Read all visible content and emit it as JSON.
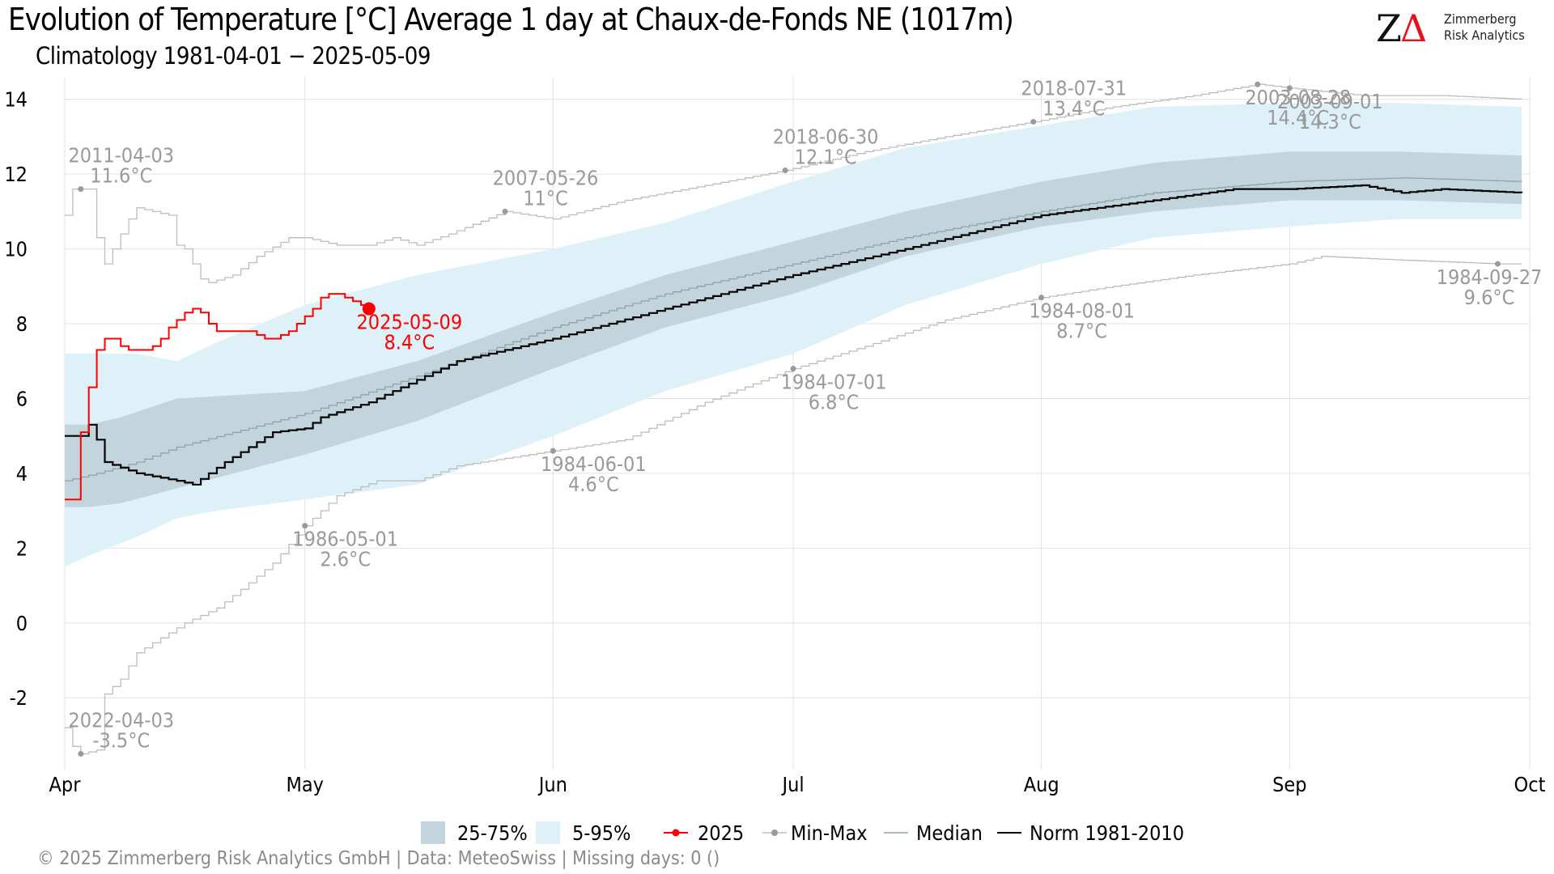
{
  "title": "Evolution of Temperature [°C] Average 1 day at Chaux-de-Fonds  NE (1017m)",
  "subtitle": "Climatology 1981-04-01 − 2025-05-09",
  "logo": {
    "mark_z": "Z",
    "mark_delta": "Δ",
    "line1": "Zimmerberg",
    "line2": "Risk Analytics"
  },
  "caption": "©  2025 Zimmerberg Risk Analytics GmbH | Data: MeteoSwiss | Missing days: 0 ()",
  "colors": {
    "band_25_75": "#c3d5dc",
    "band_5_95": "#dff1f8",
    "year_2025": "#ff0000",
    "min_max": "#bdbdbd",
    "min_max_point": "#9a9a9a",
    "median": "#8fa3ad",
    "norm": "#000000",
    "annotation": "#9a9a9a"
  },
  "legend": [
    {
      "label": "25-75%",
      "kind": "band_25_75"
    },
    {
      "label": "5-95%",
      "kind": "band_5_95"
    },
    {
      "label": "2025",
      "kind": "year_2025"
    },
    {
      "label": "Min-Max",
      "kind": "min_max"
    },
    {
      "label": "Median",
      "kind": "median"
    },
    {
      "label": "Norm 1981-2010",
      "kind": "norm"
    }
  ],
  "chart_data": {
    "type": "line",
    "title": "Evolution of Temperature [°C] Average 1 day at Chaux-de-Fonds  NE (1017m)",
    "subtitle": "Climatology 1981-04-01 − 2025-05-09",
    "xlabel": "",
    "ylabel": "",
    "xlim": [
      "2025-04-01",
      "2025-10-01"
    ],
    "ylim": [
      -3.9,
      14.6
    ],
    "x_ticks": [
      {
        "date": "2025-04-01",
        "label": "Apr"
      },
      {
        "date": "2025-05-01",
        "label": "May"
      },
      {
        "date": "2025-06-01",
        "label": "Jun"
      },
      {
        "date": "2025-07-01",
        "label": "Jul"
      },
      {
        "date": "2025-08-01",
        "label": "Aug"
      },
      {
        "date": "2025-09-01",
        "label": "Sep"
      },
      {
        "date": "2025-10-01",
        "label": "Oct"
      }
    ],
    "y_ticks": [
      -2,
      0,
      2,
      4,
      6,
      8,
      10,
      12,
      14
    ],
    "grid": true,
    "legend_position": "bottom",
    "bands": [
      {
        "name": "5-95%",
        "points": [
          [
            "2025-04-01",
            1.5,
            7.2
          ],
          [
            "2025-04-04",
            1.8,
            7.2
          ],
          [
            "2025-04-10",
            2.3,
            7.2
          ],
          [
            "2025-04-15",
            2.8,
            7.0
          ],
          [
            "2025-04-20",
            3.0,
            7.5
          ],
          [
            "2025-05-01",
            3.3,
            8.5
          ],
          [
            "2025-05-15",
            3.7,
            9.3
          ],
          [
            "2025-06-01",
            5.0,
            10.0
          ],
          [
            "2025-06-15",
            6.2,
            10.7
          ],
          [
            "2025-07-01",
            7.2,
            11.8
          ],
          [
            "2025-07-15",
            8.5,
            12.7
          ],
          [
            "2025-08-01",
            9.6,
            13.3
          ],
          [
            "2025-08-15",
            10.3,
            13.8
          ],
          [
            "2025-09-01",
            10.6,
            13.9
          ],
          [
            "2025-09-15",
            10.8,
            13.9
          ],
          [
            "2025-09-30",
            10.8,
            13.8
          ]
        ]
      },
      {
        "name": "25-75%",
        "points": [
          [
            "2025-04-01",
            3.1,
            5.3
          ],
          [
            "2025-04-04",
            3.1,
            5.3
          ],
          [
            "2025-04-08",
            3.2,
            5.5
          ],
          [
            "2025-04-15",
            3.6,
            6.0
          ],
          [
            "2025-05-01",
            4.5,
            6.2
          ],
          [
            "2025-05-15",
            5.4,
            7.0
          ],
          [
            "2025-06-01",
            6.8,
            8.3
          ],
          [
            "2025-06-15",
            7.9,
            9.3
          ],
          [
            "2025-07-01",
            8.8,
            10.2
          ],
          [
            "2025-07-15",
            9.8,
            11.0
          ],
          [
            "2025-08-01",
            10.6,
            11.8
          ],
          [
            "2025-08-15",
            11.0,
            12.3
          ],
          [
            "2025-09-01",
            11.3,
            12.6
          ],
          [
            "2025-09-15",
            11.3,
            12.6
          ],
          [
            "2025-09-30",
            11.2,
            12.5
          ]
        ]
      }
    ],
    "series": [
      {
        "name": "2025",
        "kind": "year_2025",
        "points": [
          [
            "2025-04-01",
            3.3
          ],
          [
            "2025-04-02",
            3.3
          ],
          [
            "2025-04-03",
            5.1
          ],
          [
            "2025-04-04",
            6.3
          ],
          [
            "2025-04-05",
            7.3
          ],
          [
            "2025-04-06",
            7.6
          ],
          [
            "2025-04-07",
            7.6
          ],
          [
            "2025-04-08",
            7.4
          ],
          [
            "2025-04-09",
            7.3
          ],
          [
            "2025-04-10",
            7.3
          ],
          [
            "2025-04-11",
            7.3
          ],
          [
            "2025-04-12",
            7.4
          ],
          [
            "2025-04-13",
            7.6
          ],
          [
            "2025-04-14",
            7.9
          ],
          [
            "2025-04-15",
            8.1
          ],
          [
            "2025-04-16",
            8.3
          ],
          [
            "2025-04-17",
            8.4
          ],
          [
            "2025-04-18",
            8.3
          ],
          [
            "2025-04-19",
            8.0
          ],
          [
            "2025-04-20",
            7.8
          ],
          [
            "2025-04-21",
            7.8
          ],
          [
            "2025-04-22",
            7.8
          ],
          [
            "2025-04-23",
            7.8
          ],
          [
            "2025-04-24",
            7.8
          ],
          [
            "2025-04-25",
            7.7
          ],
          [
            "2025-04-26",
            7.6
          ],
          [
            "2025-04-27",
            7.6
          ],
          [
            "2025-04-28",
            7.7
          ],
          [
            "2025-04-29",
            7.8
          ],
          [
            "2025-04-30",
            8.0
          ],
          [
            "2025-05-01",
            8.2
          ],
          [
            "2025-05-02",
            8.4
          ],
          [
            "2025-05-03",
            8.7
          ],
          [
            "2025-05-04",
            8.8
          ],
          [
            "2025-05-05",
            8.8
          ],
          [
            "2025-05-06",
            8.7
          ],
          [
            "2025-05-07",
            8.6
          ],
          [
            "2025-05-08",
            8.5
          ],
          [
            "2025-05-09",
            8.4
          ]
        ]
      },
      {
        "name": "Norm 1981-2010",
        "kind": "norm",
        "points": [
          [
            "2025-04-01",
            5.0
          ],
          [
            "2025-04-03",
            5.0
          ],
          [
            "2025-04-04",
            5.3
          ],
          [
            "2025-04-05",
            4.9
          ],
          [
            "2025-04-06",
            4.3
          ],
          [
            "2025-04-10",
            4.0
          ],
          [
            "2025-04-15",
            3.8
          ],
          [
            "2025-04-17",
            3.7
          ],
          [
            "2025-04-19",
            4.0
          ],
          [
            "2025-04-21",
            4.3
          ],
          [
            "2025-04-24",
            4.7
          ],
          [
            "2025-04-27",
            5.1
          ],
          [
            "2025-05-01",
            5.2
          ],
          [
            "2025-05-03",
            5.5
          ],
          [
            "2025-05-06",
            5.7
          ],
          [
            "2025-05-09",
            5.9
          ],
          [
            "2025-05-15",
            6.5
          ],
          [
            "2025-05-20",
            7.0
          ],
          [
            "2025-06-01",
            7.6
          ],
          [
            "2025-06-15",
            8.4
          ],
          [
            "2025-07-01",
            9.3
          ],
          [
            "2025-07-15",
            10.0
          ],
          [
            "2025-08-01",
            10.9
          ],
          [
            "2025-08-15",
            11.3
          ],
          [
            "2025-08-25",
            11.6
          ],
          [
            "2025-09-01",
            11.6
          ],
          [
            "2025-09-10",
            11.7
          ],
          [
            "2025-09-15",
            11.5
          ],
          [
            "2025-09-20",
            11.6
          ],
          [
            "2025-09-30",
            11.5
          ]
        ]
      },
      {
        "name": "Median",
        "kind": "median",
        "points": [
          [
            "2025-04-01",
            3.8
          ],
          [
            "2025-04-05",
            4.0
          ],
          [
            "2025-04-10",
            4.3
          ],
          [
            "2025-04-15",
            4.7
          ],
          [
            "2025-05-01",
            5.6
          ],
          [
            "2025-05-15",
            6.6
          ],
          [
            "2025-06-01",
            7.9
          ],
          [
            "2025-06-15",
            8.8
          ],
          [
            "2025-07-01",
            9.6
          ],
          [
            "2025-07-15",
            10.3
          ],
          [
            "2025-08-01",
            11.0
          ],
          [
            "2025-08-15",
            11.5
          ],
          [
            "2025-09-01",
            11.8
          ],
          [
            "2025-09-15",
            11.9
          ],
          [
            "2025-09-30",
            11.8
          ]
        ]
      },
      {
        "name": "Max",
        "kind": "min_max",
        "points": [
          [
            "2025-04-01",
            10.9
          ],
          [
            "2025-04-02",
            11.6
          ],
          [
            "2025-04-04",
            11.6
          ],
          [
            "2025-04-05",
            10.3
          ],
          [
            "2025-04-06",
            9.6
          ],
          [
            "2025-04-07",
            10.0
          ],
          [
            "2025-04-08",
            10.4
          ],
          [
            "2025-04-09",
            10.8
          ],
          [
            "2025-04-10",
            11.1
          ],
          [
            "2025-04-14",
            10.9
          ],
          [
            "2025-04-15",
            10.1
          ],
          [
            "2025-04-16",
            10.0
          ],
          [
            "2025-04-17",
            9.6
          ],
          [
            "2025-04-18",
            9.2
          ],
          [
            "2025-04-19",
            9.1
          ],
          [
            "2025-04-22",
            9.3
          ],
          [
            "2025-04-25",
            9.8
          ],
          [
            "2025-04-29",
            10.3
          ],
          [
            "2025-05-01",
            10.3
          ],
          [
            "2025-05-05",
            10.1
          ],
          [
            "2025-05-09",
            10.1
          ],
          [
            "2025-05-12",
            10.3
          ],
          [
            "2025-05-15",
            10.1
          ],
          [
            "2025-05-19",
            10.4
          ],
          [
            "2025-05-26",
            11.0
          ],
          [
            "2025-06-01",
            10.8
          ],
          [
            "2025-06-10",
            11.3
          ],
          [
            "2025-06-20",
            11.7
          ],
          [
            "2025-06-30",
            12.1
          ],
          [
            "2025-07-10",
            12.6
          ],
          [
            "2025-07-20",
            13.0
          ],
          [
            "2025-07-31",
            13.4
          ],
          [
            "2025-08-10",
            13.8
          ],
          [
            "2025-08-20",
            14.1
          ],
          [
            "2025-08-28",
            14.4
          ],
          [
            "2025-09-01",
            14.3
          ],
          [
            "2025-09-10",
            14.1
          ],
          [
            "2025-09-20",
            14.1
          ],
          [
            "2025-09-30",
            14.0
          ]
        ]
      },
      {
        "name": "Min",
        "kind": "min_max",
        "points": [
          [
            "2025-04-01",
            -2.8
          ],
          [
            "2025-04-02",
            -3.3
          ],
          [
            "2025-04-03",
            -3.5
          ],
          [
            "2025-04-05",
            -3.4
          ],
          [
            "2025-04-06",
            -1.9
          ],
          [
            "2025-04-08",
            -1.5
          ],
          [
            "2025-04-10",
            -0.8
          ],
          [
            "2025-04-13",
            -0.4
          ],
          [
            "2025-04-16",
            0.0
          ],
          [
            "2025-04-20",
            0.4
          ],
          [
            "2025-04-23",
            0.9
          ],
          [
            "2025-04-27",
            1.6
          ],
          [
            "2025-05-01",
            2.6
          ],
          [
            "2025-05-05",
            3.4
          ],
          [
            "2025-05-10",
            3.8
          ],
          [
            "2025-05-15",
            3.8
          ],
          [
            "2025-05-20",
            4.2
          ],
          [
            "2025-06-01",
            4.6
          ],
          [
            "2025-06-10",
            4.9
          ],
          [
            "2025-06-20",
            5.9
          ],
          [
            "2025-07-01",
            6.8
          ],
          [
            "2025-07-10",
            7.4
          ],
          [
            "2025-07-20",
            8.1
          ],
          [
            "2025-08-01",
            8.7
          ],
          [
            "2025-08-10",
            9.0
          ],
          [
            "2025-08-20",
            9.3
          ],
          [
            "2025-09-01",
            9.6
          ],
          [
            "2025-09-05",
            9.8
          ],
          [
            "2025-09-15",
            9.7
          ],
          [
            "2025-09-27",
            9.6
          ],
          [
            "2025-09-30",
            9.6
          ]
        ]
      }
    ],
    "annotations": [
      {
        "date": "2025-04-03",
        "value": 11.6,
        "label_date": "2011-04-03",
        "label_value": "11.6°C",
        "position": "above",
        "color": "annotation"
      },
      {
        "date": "2025-04-03",
        "value": -3.5,
        "label_date": "2022-04-03",
        "label_value": "-3.5°C",
        "position": "above",
        "color": "annotation"
      },
      {
        "date": "2025-05-01",
        "value": 2.6,
        "label_date": "1986-05-01",
        "label_value": "2.6°C",
        "position": "below",
        "color": "annotation"
      },
      {
        "date": "2025-05-26",
        "value": 11.0,
        "label_date": "2007-05-26",
        "label_value": "11°C",
        "position": "above",
        "color": "annotation"
      },
      {
        "date": "2025-06-01",
        "value": 4.6,
        "label_date": "1984-06-01",
        "label_value": "4.6°C",
        "position": "below",
        "color": "annotation"
      },
      {
        "date": "2025-06-30",
        "value": 12.1,
        "label_date": "2018-06-30",
        "label_value": "12.1°C",
        "position": "above",
        "color": "annotation"
      },
      {
        "date": "2025-07-01",
        "value": 6.8,
        "label_date": "1984-07-01",
        "label_value": "6.8°C",
        "position": "below",
        "color": "annotation"
      },
      {
        "date": "2025-07-31",
        "value": 13.4,
        "label_date": "2018-07-31",
        "label_value": "13.4°C",
        "position": "above",
        "color": "annotation"
      },
      {
        "date": "2025-08-01",
        "value": 8.7,
        "label_date": "1984-08-01",
        "label_value": "8.7°C",
        "position": "below",
        "color": "annotation"
      },
      {
        "date": "2025-08-28",
        "value": 14.4,
        "label_date": "2003-08-28",
        "label_value": "14.4°C",
        "position": "below",
        "color": "annotation"
      },
      {
        "date": "2025-09-01",
        "value": 14.3,
        "label_date": "2003-09-01",
        "label_value": "14.3°C",
        "position": "below",
        "color": "annotation"
      },
      {
        "date": "2025-09-27",
        "value": 9.6,
        "label_date": "1984-09-27",
        "label_value": "9.6°C",
        "position": "below",
        "color": "annotation"
      },
      {
        "date": "2025-05-09",
        "value": 8.4,
        "label_date": "2025-05-09",
        "label_value": "8.4°C",
        "position": "below",
        "color": "year_2025"
      }
    ]
  }
}
